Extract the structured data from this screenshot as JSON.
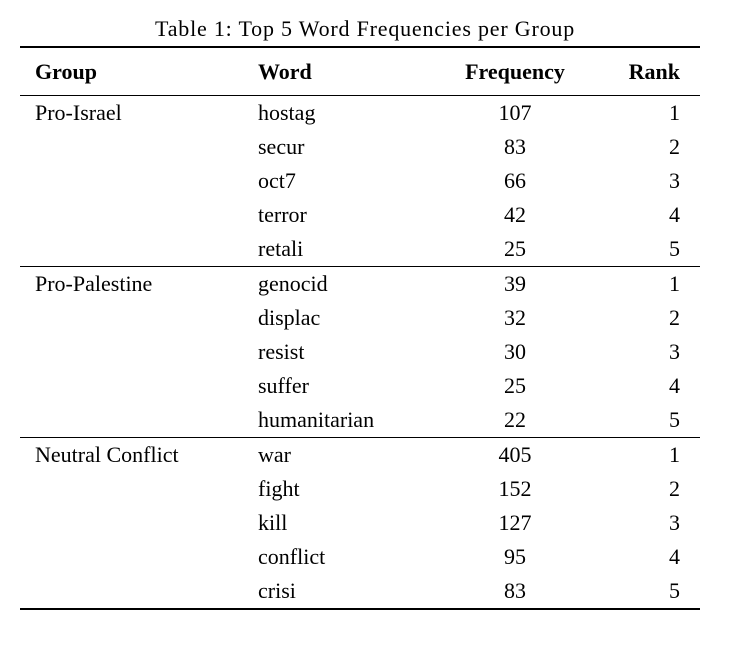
{
  "colors": {
    "text": "#000000",
    "rule": "#000000",
    "background": "#ffffff"
  },
  "table": {
    "caption": "Table 1: Top 5 Word Frequencies per Group",
    "columns": [
      "Group",
      "Word",
      "Frequency",
      "Rank"
    ],
    "groups": [
      {
        "name": "Pro-Israel",
        "rows": [
          {
            "word": "hostag",
            "frequency": "107",
            "rank": "1"
          },
          {
            "word": "secur",
            "frequency": "83",
            "rank": "2"
          },
          {
            "word": "oct7",
            "frequency": "66",
            "rank": "3"
          },
          {
            "word": "terror",
            "frequency": "42",
            "rank": "4"
          },
          {
            "word": "retali",
            "frequency": "25",
            "rank": "5"
          }
        ]
      },
      {
        "name": "Pro-Palestine",
        "rows": [
          {
            "word": "genocid",
            "frequency": "39",
            "rank": "1"
          },
          {
            "word": "displac",
            "frequency": "32",
            "rank": "2"
          },
          {
            "word": "resist",
            "frequency": "30",
            "rank": "3"
          },
          {
            "word": "suffer",
            "frequency": "25",
            "rank": "4"
          },
          {
            "word": "humanitarian",
            "frequency": "22",
            "rank": "5"
          }
        ]
      },
      {
        "name": "Neutral Conflict",
        "rows": [
          {
            "word": "war",
            "frequency": "405",
            "rank": "1"
          },
          {
            "word": "fight",
            "frequency": "152",
            "rank": "2"
          },
          {
            "word": "kill",
            "frequency": "127",
            "rank": "3"
          },
          {
            "word": "conflict",
            "frequency": "95",
            "rank": "4"
          },
          {
            "word": "crisi",
            "frequency": "83",
            "rank": "5"
          }
        ]
      }
    ]
  },
  "chart_data": {
    "type": "table",
    "title": "Table 1: Top 5 Word Frequencies per Group",
    "columns": [
      "Group",
      "Word",
      "Frequency",
      "Rank"
    ],
    "rows": [
      [
        "Pro-Israel",
        "hostag",
        107,
        1
      ],
      [
        "Pro-Israel",
        "secur",
        83,
        2
      ],
      [
        "Pro-Israel",
        "oct7",
        66,
        3
      ],
      [
        "Pro-Israel",
        "terror",
        42,
        4
      ],
      [
        "Pro-Israel",
        "retali",
        25,
        5
      ],
      [
        "Pro-Palestine",
        "genocid",
        39,
        1
      ],
      [
        "Pro-Palestine",
        "displac",
        32,
        2
      ],
      [
        "Pro-Palestine",
        "resist",
        30,
        3
      ],
      [
        "Pro-Palestine",
        "suffer",
        25,
        4
      ],
      [
        "Pro-Palestine",
        "humanitarian",
        22,
        5
      ],
      [
        "Neutral Conflict",
        "war",
        405,
        1
      ],
      [
        "Neutral Conflict",
        "fight",
        152,
        2
      ],
      [
        "Neutral Conflict",
        "kill",
        127,
        3
      ],
      [
        "Neutral Conflict",
        "conflict",
        95,
        4
      ],
      [
        "Neutral Conflict",
        "crisi",
        83,
        5
      ]
    ]
  }
}
